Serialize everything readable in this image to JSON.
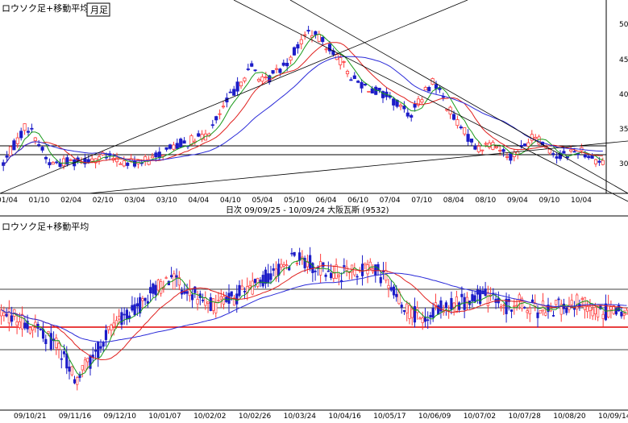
{
  "colors": {
    "up_candle": "#ff3b3b",
    "down_candle": "#1c1cc8",
    "ma_short": "#1a9a1a",
    "ma_mid": "#e0201e",
    "ma_long": "#2a2ad8",
    "support_line": "#e00000",
    "trendline": "#000000",
    "grid": "#000000"
  },
  "upper_chart": {
    "title": "ロウソク足+移動平均",
    "period_button": "月足",
    "y_axis_labels": [
      "50",
      "45",
      "40",
      "35",
      "30"
    ],
    "x_axis_labels": [
      "01/04",
      "01/10",
      "02/04",
      "02/10",
      "03/04",
      "03/10",
      "04/04",
      "04/10",
      "05/04",
      "05/10",
      "06/04",
      "06/10",
      "07/04",
      "07/10",
      "08/04",
      "08/10",
      "09/04",
      "09/10",
      "10/04"
    ],
    "horizontal_lines": [
      310,
      300
    ]
  },
  "info_bar": {
    "text": "日次 09/09/25 - 10/09/24 大阪瓦斯 (9532)"
  },
  "lower_chart": {
    "title": "ロウソク足+移動平均",
    "x_axis_labels": [
      "09/10/21",
      "09/11/16",
      "09/12/10",
      "10/01/07",
      "10/02/02",
      "10/02/26",
      "10/03/24",
      "10/04/16",
      "10/05/17",
      "10/06/09",
      "10/07/02",
      "10/07/28",
      "10/08/20",
      "10/09/14"
    ]
  },
  "chart_data": [
    {
      "type": "candlestick",
      "title": "ロウソク足+移動平均",
      "period": "月足",
      "x": [
        "01/04",
        "01/10",
        "02/04",
        "02/10",
        "03/04",
        "03/10",
        "04/04",
        "04/10",
        "05/04",
        "05/10",
        "06/04",
        "06/10",
        "07/04",
        "07/10",
        "08/04",
        "08/10",
        "09/04",
        "09/10",
        "10/04"
      ],
      "ohlc": [
        [
          300,
          330,
          290,
          325
        ],
        [
          325,
          360,
          320,
          355
        ],
        [
          355,
          365,
          330,
          340
        ],
        [
          340,
          345,
          300,
          305
        ],
        [
          305,
          320,
          290,
          312
        ],
        [
          312,
          335,
          305,
          330
        ],
        [
          330,
          340,
          300,
          305
        ],
        [
          305,
          315,
          295,
          310
        ],
        [
          310,
          335,
          300,
          330
        ],
        [
          330,
          370,
          325,
          365
        ],
        [
          365,
          440,
          360,
          435
        ],
        [
          435,
          460,
          420,
          440
        ],
        [
          440,
          500,
          430,
          490
        ],
        [
          490,
          500,
          430,
          440
        ],
        [
          440,
          460,
          390,
          400
        ],
        [
          400,
          420,
          340,
          350
        ],
        [
          350,
          365,
          300,
          310
        ],
        [
          310,
          345,
          305,
          330
        ],
        [
          330,
          345,
          310,
          320
        ]
      ],
      "ylim": [
        260,
        520
      ],
      "y_ticks": [
        300,
        350,
        400,
        450,
        500
      ]
    },
    {
      "type": "candlestick",
      "title": "ロウソク足+移動平均",
      "date_range": "09/09/25 - 10/09/24",
      "x": [
        "09/10/21",
        "09/11/16",
        "09/12/10",
        "10/01/07",
        "10/02/02",
        "10/02/26",
        "10/03/24",
        "10/04/16",
        "10/05/17",
        "10/06/09",
        "10/07/02",
        "10/07/28",
        "10/08/20",
        "10/09/14"
      ],
      "close": [
        343,
        336,
        339,
        342,
        340,
        343,
        346,
        345,
        339,
        341,
        340,
        339,
        340,
        340
      ],
      "ylim": [
        330,
        350
      ]
    }
  ]
}
